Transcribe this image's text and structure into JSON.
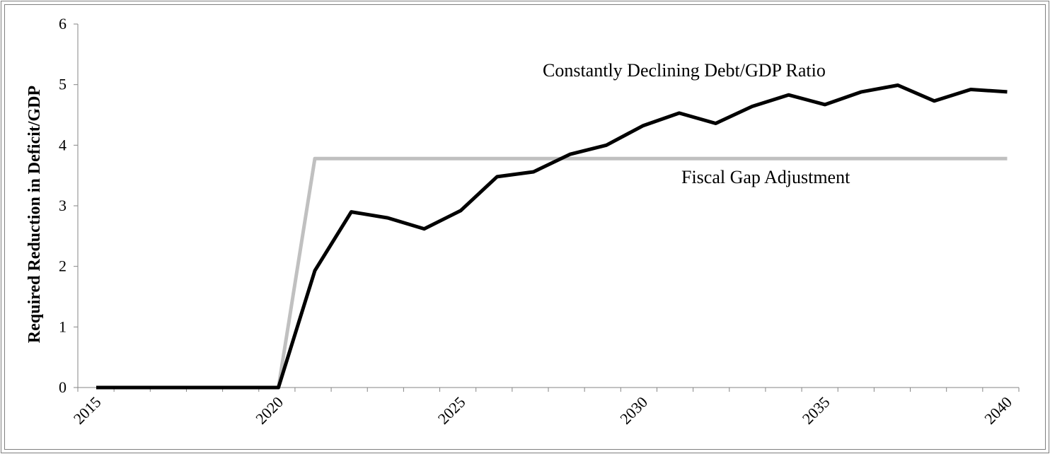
{
  "chart_data": {
    "type": "line",
    "title": "",
    "xlabel": "",
    "ylabel": "Required Reduction in Deficit/GDP",
    "xlim": [
      2015,
      2040.6
    ],
    "ylim": [
      0,
      6
    ],
    "x_ticks": [
      "2015",
      "2020",
      "2025",
      "2030",
      "2035",
      "2040"
    ],
    "y_ticks": [
      "0",
      "1",
      "2",
      "3",
      "4",
      "5",
      "6"
    ],
    "grid": false,
    "legend": "none",
    "annotations": [
      {
        "text": "Constantly Declining Debt/GDP Ratio",
        "series": "Constantly Declining Debt/GDP Ratio"
      },
      {
        "text": "Fiscal Gap Adjustment",
        "series": "Fiscal Gap Adjustment"
      }
    ],
    "series": [
      {
        "name": "Constantly Declining Debt/GDP Ratio",
        "color": "#000000",
        "x": [
          2015,
          2016,
          2017,
          2018,
          2019,
          2020,
          2021,
          2022,
          2023,
          2024,
          2025,
          2026,
          2027,
          2028,
          2029,
          2030,
          2031,
          2032,
          2033,
          2034,
          2035,
          2036,
          2037,
          2038,
          2039,
          2040
        ],
        "y": [
          0,
          0,
          0,
          0,
          0,
          0,
          1.93,
          2.9,
          2.8,
          2.62,
          2.92,
          3.48,
          3.56,
          3.85,
          4.0,
          4.32,
          4.53,
          4.36,
          4.64,
          4.83,
          4.67,
          4.88,
          4.99,
          4.73,
          4.92,
          4.88
        ]
      },
      {
        "name": "Fiscal Gap Adjustment",
        "color": "#c0c0c0",
        "x": [
          2015,
          2016,
          2017,
          2018,
          2019,
          2020,
          2021,
          2022,
          2023,
          2024,
          2025,
          2026,
          2027,
          2028,
          2029,
          2030,
          2031,
          2032,
          2033,
          2034,
          2035,
          2036,
          2037,
          2038,
          2039,
          2040
        ],
        "y": [
          0,
          0,
          0,
          0,
          0,
          0,
          3.78,
          3.78,
          3.78,
          3.78,
          3.78,
          3.78,
          3.78,
          3.78,
          3.78,
          3.78,
          3.78,
          3.78,
          3.78,
          3.78,
          3.78,
          3.78,
          3.78,
          3.78,
          3.78,
          3.78
        ]
      }
    ]
  }
}
